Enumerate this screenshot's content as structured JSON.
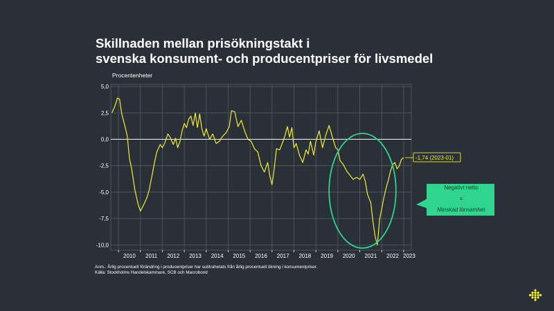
{
  "title": {
    "line1": "Skillnaden mellan prisökningstakt i",
    "line2": "svenska konsument- och producentpriser för livsmedel"
  },
  "notes": {
    "line1": "Anm.: Årlig procentuell förändring i producentpriser har subtrahetats från årlig procentuell ökning i konsumentpriser.",
    "line2": "Källa: Stockholms Handelskammare, SCB och Macrobond"
  },
  "colors": {
    "background": "#2a3038",
    "series": "#f2ee2c",
    "highlight": "#2fd58e",
    "grid": "#555c64",
    "zero_line": "#ffffff",
    "logo": "#f2ee2c"
  },
  "icons": {
    "logo": "dot-cluster-logo-icon"
  },
  "chart_data": {
    "type": "line",
    "title": "",
    "ylabel": "Procentenheter",
    "xlabel": "",
    "ylim": [
      -10.5,
      5.2
    ],
    "xlim": [
      2009.65,
      2023.35
    ],
    "grid": true,
    "yticks": [
      {
        "value": 5,
        "label": "5,0"
      },
      {
        "value": 2.5,
        "label": "2,5"
      },
      {
        "value": 0,
        "label": "0,0"
      },
      {
        "value": -2.5,
        "label": "-2,5"
      },
      {
        "value": -5,
        "label": "-5,0"
      },
      {
        "value": -7.5,
        "label": "-7,5"
      },
      {
        "value": -10,
        "label": "-10,0"
      }
    ],
    "xticks": [
      {
        "value": 2010,
        "label": "2010"
      },
      {
        "value": 2011,
        "label": "2011"
      },
      {
        "value": 2012,
        "label": "2012"
      },
      {
        "value": 2013,
        "label": "2013"
      },
      {
        "value": 2014,
        "label": "2014"
      },
      {
        "value": 2015,
        "label": "2015"
      },
      {
        "value": 2016,
        "label": "2016"
      },
      {
        "value": 2017,
        "label": "2017"
      },
      {
        "value": 2018,
        "label": "2018"
      },
      {
        "value": 2019,
        "label": "2019"
      },
      {
        "value": 2020,
        "label": "2020"
      },
      {
        "value": 2021,
        "label": "2021"
      },
      {
        "value": 2022,
        "label": "2022"
      },
      {
        "value": 2023,
        "label": "2023"
      }
    ],
    "series": [
      {
        "x": [
          2009.7,
          2009.85,
          2009.95,
          2010.05,
          2010.15,
          2010.3,
          2010.4,
          2010.5,
          2010.6,
          2010.75,
          2010.9,
          2011.0,
          2011.15,
          2011.3,
          2011.4,
          2011.55,
          2011.65,
          2011.75,
          2011.9,
          2012.0,
          2012.1,
          2012.25,
          2012.35,
          2012.5,
          2012.6,
          2012.7,
          2012.8,
          2012.9,
          2013.0,
          2013.1,
          2013.2,
          2013.3,
          2013.4,
          2013.5,
          2013.6,
          2013.7,
          2013.8,
          2013.9,
          2014.0,
          2014.15,
          2014.3,
          2014.45,
          2014.6,
          2014.75,
          2014.9,
          2015.05,
          2015.15,
          2015.3,
          2015.45,
          2015.6,
          2015.75,
          2015.9,
          2016.05,
          2016.2,
          2016.35,
          2016.5,
          2016.65,
          2016.8,
          2016.9,
          2017.0,
          2017.1,
          2017.2,
          2017.35,
          2017.5,
          2017.6,
          2017.7,
          2017.8,
          2017.9,
          2018.0,
          2018.1,
          2018.25,
          2018.4,
          2018.55,
          2018.65,
          2018.75,
          2018.9,
          2019.0,
          2019.15,
          2019.3,
          2019.45,
          2019.6,
          2019.75,
          2019.9,
          2020.0,
          2020.1,
          2020.25,
          2020.4,
          2020.55,
          2020.7,
          2020.85,
          2021.0,
          2021.15,
          2021.25,
          2021.35,
          2021.5,
          2021.6,
          2021.7,
          2021.8,
          2021.9,
          2022.0,
          2022.1,
          2022.2,
          2022.3,
          2022.4,
          2022.5,
          2022.6,
          2022.7,
          2022.8,
          2022.9,
          2023.0
        ],
        "values": [
          2.5,
          3.2,
          3.9,
          3.8,
          2.4,
          1.2,
          0.3,
          -1.8,
          -2.8,
          -4.8,
          -6.2,
          -6.8,
          -6.2,
          -5.5,
          -4.8,
          -3.2,
          -2.1,
          -1.2,
          -0.5,
          -0.8,
          -0.4,
          0.5,
          0.2,
          -0.5,
          0.1,
          -0.8,
          -0.2,
          0.8,
          1.5,
          1.1,
          1.9,
          2.2,
          1.3,
          2.5,
          1.1,
          2.4,
          1.0,
          0.3,
          1.0,
          0.0,
          0.5,
          -0.4,
          -0.2,
          0.3,
          0.6,
          1.2,
          2.7,
          2.6,
          1.2,
          1.8,
          0.8,
          0.0,
          -0.2,
          -0.9,
          -1.2,
          -2.5,
          -3.1,
          -2.2,
          -3.5,
          -4.3,
          -2.8,
          -0.9,
          -1.0,
          -0.2,
          0.4,
          1.2,
          0.2,
          1.1,
          -0.8,
          -0.4,
          -1.5,
          -2.2,
          -1.0,
          -1.4,
          -0.2,
          -1.5,
          -0.2,
          0.8,
          -0.8,
          0.4,
          1.3,
          0.2,
          -0.8,
          -1.0,
          -2.0,
          -2.4,
          -3.0,
          -3.4,
          -3.8,
          -3.6,
          -3.8,
          -3.3,
          -4.0,
          -5.2,
          -6.0,
          -7.8,
          -9.2,
          -10.0,
          -7.6,
          -6.6,
          -5.5,
          -4.6,
          -3.9,
          -3.0,
          -2.4,
          -2.2,
          -2.8,
          -2.5,
          -1.9,
          -1.74
        ]
      }
    ],
    "annotations": [
      {
        "label": "-1,74 (2023-01)",
        "x": 2023.0,
        "y": -1.74
      },
      {
        "line1": "Negativt  netto",
        "line2": "=",
        "line3": "Minskad lönsamhet",
        "highlight": "ellipse around 2019.6–2022.6"
      }
    ]
  }
}
